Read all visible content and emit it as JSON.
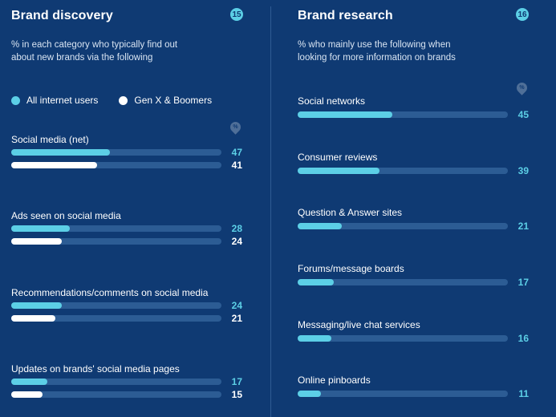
{
  "colors": {
    "all_users": "#5ccfe6",
    "genx_boomers": "#ffffff",
    "track": "#2c5c94",
    "background": "#0f3a73"
  },
  "pct_icon_text": "%",
  "left": {
    "title": "Brand discovery",
    "badge": "15",
    "subtitle_lines": [
      "% in each category who typically find out",
      "about new brands via the following"
    ],
    "legend": [
      "All internet users",
      "Gen X & Boomers"
    ]
  },
  "right": {
    "title": "Brand research",
    "badge": "16",
    "subtitle_lines": [
      "% who mainly use the following when",
      "looking for more information on brands"
    ]
  },
  "chart_data": [
    {
      "type": "bar",
      "orientation": "horizontal",
      "title": "Brand discovery",
      "categories": [
        "Social media (net)",
        "Ads seen on social media",
        "Recommendations/comments on social media",
        "Updates on brands' social media pages"
      ],
      "series": [
        {
          "name": "All internet users",
          "values": [
            47,
            28,
            24,
            17
          ]
        },
        {
          "name": "Gen X & Boomers",
          "values": [
            41,
            24,
            21,
            15
          ]
        }
      ],
      "xlim": [
        0,
        100
      ],
      "legend_position": "top"
    },
    {
      "type": "bar",
      "orientation": "horizontal",
      "title": "Brand research",
      "categories": [
        "Social networks",
        "Consumer reviews",
        "Question & Answer sites",
        "Forums/message boards",
        "Messaging/live chat services",
        "Online pinboards"
      ],
      "series": [
        {
          "values": [
            45,
            39,
            21,
            17,
            16,
            11
          ]
        }
      ],
      "xlim": [
        0,
        100
      ]
    }
  ]
}
